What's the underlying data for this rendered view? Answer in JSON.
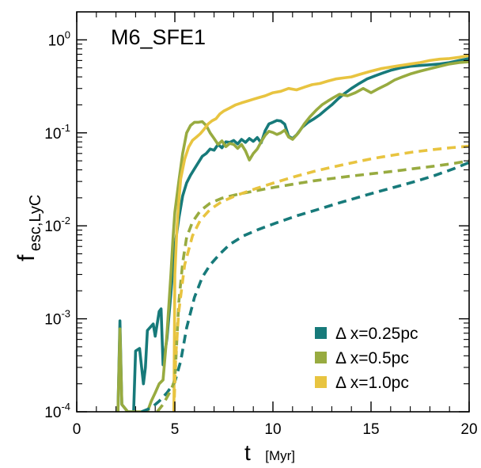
{
  "chart_data": {
    "type": "line",
    "title": "M6_SFE1",
    "xlabel": "t",
    "xlabel_unit": "[Myr]",
    "ylabel_main": "f",
    "ylabel_sub": "esc,LyC",
    "xlim": [
      0,
      20
    ],
    "ylim": [
      0.0001,
      2.0
    ],
    "yscale": "log",
    "grid": false,
    "legend_position": "bottom-right",
    "x_ticks": [
      {
        "value": 0,
        "label": "0"
      },
      {
        "value": 5,
        "label": "5"
      },
      {
        "value": 10,
        "label": "10"
      },
      {
        "value": 15,
        "label": "15"
      },
      {
        "value": 20,
        "label": "20"
      }
    ],
    "y_ticks": [
      {
        "value": 1.0,
        "base": "10",
        "exp": "0"
      },
      {
        "value": 0.1,
        "base": "10",
        "exp": "-1"
      },
      {
        "value": 0.01,
        "base": "10",
        "exp": "-2"
      },
      {
        "value": 0.001,
        "base": "10",
        "exp": "-3"
      },
      {
        "value": 0.0001,
        "base": "10",
        "exp": "-4"
      }
    ],
    "series": [
      {
        "name": "Δ x=0.25pc",
        "color": "#177a7a",
        "style": "solid",
        "points": [
          [
            2.1,
            0.0001
          ],
          [
            2.2,
            0.00095
          ],
          [
            2.3,
            0.00012
          ],
          [
            2.6,
            0.0001
          ],
          [
            2.9,
            0.0001
          ],
          [
            3.0,
            0.00045
          ],
          [
            3.2,
            0.00048
          ],
          [
            3.4,
            0.0002
          ],
          [
            3.5,
            0.0003
          ],
          [
            3.6,
            0.00075
          ],
          [
            3.9,
            0.00088
          ],
          [
            4.0,
            0.00065
          ],
          [
            4.2,
            0.0012
          ],
          [
            4.3,
            0.00128
          ],
          [
            4.4,
            0.00032
          ],
          [
            4.6,
            0.00062
          ],
          [
            4.8,
            0.00185
          ],
          [
            4.9,
            0.0035
          ],
          [
            5.0,
            0.006
          ],
          [
            5.2,
            0.012
          ],
          [
            5.4,
            0.021
          ],
          [
            5.6,
            0.029
          ],
          [
            5.8,
            0.035
          ],
          [
            6.0,
            0.041
          ],
          [
            6.2,
            0.048
          ],
          [
            6.4,
            0.056
          ],
          [
            6.6,
            0.06
          ],
          [
            6.8,
            0.067
          ],
          [
            7.0,
            0.065
          ],
          [
            7.2,
            0.075
          ],
          [
            7.4,
            0.069
          ],
          [
            7.6,
            0.08
          ],
          [
            7.8,
            0.079
          ],
          [
            8.0,
            0.083
          ],
          [
            8.2,
            0.076
          ],
          [
            8.4,
            0.085
          ],
          [
            8.6,
            0.079
          ],
          [
            8.8,
            0.087
          ],
          [
            9.0,
            0.081
          ],
          [
            9.2,
            0.089
          ],
          [
            9.4,
            0.078
          ],
          [
            9.6,
            0.105
          ],
          [
            9.8,
            0.125
          ],
          [
            10.0,
            0.13
          ],
          [
            10.2,
            0.136
          ],
          [
            10.4,
            0.134
          ],
          [
            10.6,
            0.124
          ],
          [
            10.8,
            0.092
          ],
          [
            11.0,
            0.087
          ],
          [
            11.2,
            0.095
          ],
          [
            11.5,
            0.115
          ],
          [
            11.8,
            0.13
          ],
          [
            12.1,
            0.142
          ],
          [
            12.4,
            0.157
          ],
          [
            12.7,
            0.178
          ],
          [
            13.0,
            0.2
          ],
          [
            13.3,
            0.23
          ],
          [
            13.6,
            0.26
          ],
          [
            14.0,
            0.3
          ],
          [
            14.4,
            0.34
          ],
          [
            14.8,
            0.38
          ],
          [
            15.2,
            0.41
          ],
          [
            15.6,
            0.44
          ],
          [
            16.0,
            0.47
          ],
          [
            16.5,
            0.5
          ],
          [
            17.0,
            0.52
          ],
          [
            17.5,
            0.53
          ],
          [
            18.0,
            0.54
          ],
          [
            18.5,
            0.55
          ],
          [
            19.0,
            0.57
          ],
          [
            19.5,
            0.6
          ],
          [
            20.0,
            0.63
          ]
        ]
      },
      {
        "name": "Δ x=0.5pc",
        "color": "#98ab40",
        "style": "solid",
        "points": [
          [
            2.1,
            0.0001
          ],
          [
            2.2,
            0.00078
          ],
          [
            2.3,
            0.00012
          ],
          [
            2.6,
            0.0001
          ],
          [
            3.6,
            0.0001
          ],
          [
            3.8,
            0.00013
          ],
          [
            4.0,
            0.00016
          ],
          [
            4.2,
            0.0002
          ],
          [
            4.4,
            0.00022
          ],
          [
            4.6,
            0.0007
          ],
          [
            4.8,
            0.003
          ],
          [
            4.9,
            0.007
          ],
          [
            5.0,
            0.014
          ],
          [
            5.2,
            0.03
          ],
          [
            5.4,
            0.06
          ],
          [
            5.6,
            0.1
          ],
          [
            5.8,
            0.12
          ],
          [
            6.0,
            0.13
          ],
          [
            6.2,
            0.13
          ],
          [
            6.4,
            0.132
          ],
          [
            6.6,
            0.12
          ],
          [
            6.8,
            0.1
          ],
          [
            7.0,
            0.087
          ],
          [
            7.2,
            0.075
          ],
          [
            7.4,
            0.082
          ],
          [
            7.6,
            0.071
          ],
          [
            7.8,
            0.077
          ],
          [
            8.0,
            0.075
          ],
          [
            8.2,
            0.068
          ],
          [
            8.4,
            0.075
          ],
          [
            8.6,
            0.064
          ],
          [
            8.8,
            0.051
          ],
          [
            9.0,
            0.06
          ],
          [
            9.2,
            0.067
          ],
          [
            9.4,
            0.08
          ],
          [
            9.6,
            0.094
          ],
          [
            9.8,
            0.104
          ],
          [
            10.0,
            0.101
          ],
          [
            10.2,
            0.096
          ],
          [
            10.4,
            0.1
          ],
          [
            10.6,
            0.107
          ],
          [
            10.8,
            0.09
          ],
          [
            11.0,
            0.085
          ],
          [
            11.3,
            0.1
          ],
          [
            11.6,
            0.125
          ],
          [
            11.9,
            0.15
          ],
          [
            12.2,
            0.175
          ],
          [
            12.5,
            0.2
          ],
          [
            12.8,
            0.22
          ],
          [
            13.1,
            0.24
          ],
          [
            13.4,
            0.26
          ],
          [
            13.8,
            0.25
          ],
          [
            14.2,
            0.27
          ],
          [
            14.6,
            0.3
          ],
          [
            15.0,
            0.27
          ],
          [
            15.4,
            0.3
          ],
          [
            15.8,
            0.33
          ],
          [
            16.2,
            0.37
          ],
          [
            16.6,
            0.4
          ],
          [
            17.0,
            0.43
          ],
          [
            17.5,
            0.46
          ],
          [
            18.0,
            0.49
          ],
          [
            18.5,
            0.52
          ],
          [
            19.0,
            0.55
          ],
          [
            19.5,
            0.57
          ],
          [
            20.0,
            0.58
          ]
        ]
      },
      {
        "name": "Δ x=1.0pc",
        "color": "#e8c440",
        "style": "solid",
        "points": [
          [
            4.95,
            0.0001
          ],
          [
            5.0,
            0.003
          ],
          [
            5.1,
            0.009
          ],
          [
            5.2,
            0.018
          ],
          [
            5.3,
            0.032
          ],
          [
            5.5,
            0.052
          ],
          [
            5.7,
            0.07
          ],
          [
            5.9,
            0.083
          ],
          [
            6.1,
            0.09
          ],
          [
            6.3,
            0.098
          ],
          [
            6.5,
            0.11
          ],
          [
            6.7,
            0.125
          ],
          [
            6.9,
            0.135
          ],
          [
            7.1,
            0.142
          ],
          [
            7.3,
            0.16
          ],
          [
            7.5,
            0.172
          ],
          [
            7.8,
            0.185
          ],
          [
            8.1,
            0.2
          ],
          [
            8.4,
            0.21
          ],
          [
            8.7,
            0.22
          ],
          [
            9.0,
            0.23
          ],
          [
            9.3,
            0.24
          ],
          [
            9.6,
            0.25
          ],
          [
            10.0,
            0.27
          ],
          [
            10.4,
            0.28
          ],
          [
            10.8,
            0.3
          ],
          [
            11.2,
            0.29
          ],
          [
            11.6,
            0.31
          ],
          [
            12.0,
            0.33
          ],
          [
            12.4,
            0.34
          ],
          [
            12.8,
            0.36
          ],
          [
            13.2,
            0.38
          ],
          [
            13.6,
            0.39
          ],
          [
            14.0,
            0.4
          ],
          [
            14.5,
            0.43
          ],
          [
            15.0,
            0.46
          ],
          [
            15.5,
            0.49
          ],
          [
            16.0,
            0.51
          ],
          [
            16.5,
            0.53
          ],
          [
            17.0,
            0.55
          ],
          [
            17.5,
            0.57
          ],
          [
            18.0,
            0.6
          ],
          [
            18.5,
            0.62
          ],
          [
            19.0,
            0.63
          ],
          [
            19.5,
            0.65
          ],
          [
            20.0,
            0.68
          ]
        ]
      },
      {
        "color": "#177a7a",
        "style": "dashed",
        "points": [
          [
            3.3,
            0.0001
          ],
          [
            3.8,
            0.00011
          ],
          [
            4.2,
            0.00013
          ],
          [
            4.6,
            0.00016
          ],
          [
            5.0,
            0.00021
          ],
          [
            5.3,
            0.00035
          ],
          [
            5.6,
            0.0008
          ],
          [
            6.0,
            0.0017
          ],
          [
            6.4,
            0.0028
          ],
          [
            6.8,
            0.0038
          ],
          [
            7.3,
            0.005
          ],
          [
            7.8,
            0.0063
          ],
          [
            8.5,
            0.0078
          ],
          [
            9.3,
            0.0092
          ],
          [
            10.2,
            0.0108
          ],
          [
            11.2,
            0.0128
          ],
          [
            12.2,
            0.0148
          ],
          [
            13.2,
            0.0172
          ],
          [
            14.2,
            0.0198
          ],
          [
            15.2,
            0.0228
          ],
          [
            16.2,
            0.026
          ],
          [
            17.2,
            0.0298
          ],
          [
            18.2,
            0.0345
          ],
          [
            19.2,
            0.041
          ],
          [
            20.0,
            0.048
          ]
        ]
      },
      {
        "color": "#98ab40",
        "style": "dashed",
        "points": [
          [
            4.1,
            0.0001
          ],
          [
            4.4,
            0.00012
          ],
          [
            4.8,
            0.00017
          ],
          [
            5.0,
            0.00022
          ],
          [
            5.2,
            0.0015
          ],
          [
            5.4,
            0.004
          ],
          [
            5.6,
            0.0075
          ],
          [
            5.9,
            0.011
          ],
          [
            6.3,
            0.0145
          ],
          [
            6.8,
            0.0175
          ],
          [
            7.4,
            0.0198
          ],
          [
            8.2,
            0.0218
          ],
          [
            9.1,
            0.0238
          ],
          [
            10.1,
            0.026
          ],
          [
            11.1,
            0.0282
          ],
          [
            12.1,
            0.0305
          ],
          [
            13.1,
            0.0325
          ],
          [
            14.1,
            0.0345
          ],
          [
            15.1,
            0.0365
          ],
          [
            16.1,
            0.0385
          ],
          [
            17.1,
            0.041
          ],
          [
            18.1,
            0.0435
          ],
          [
            19.1,
            0.0465
          ],
          [
            20.0,
            0.05
          ]
        ]
      },
      {
        "color": "#e8c440",
        "style": "dashed",
        "points": [
          [
            4.95,
            0.0001
          ],
          [
            5.05,
            0.0004
          ],
          [
            5.2,
            0.0012
          ],
          [
            5.5,
            0.0038
          ],
          [
            5.9,
            0.0078
          ],
          [
            6.3,
            0.0115
          ],
          [
            6.8,
            0.015
          ],
          [
            7.4,
            0.0182
          ],
          [
            8.2,
            0.0215
          ],
          [
            9.1,
            0.025
          ],
          [
            10.1,
            0.0292
          ],
          [
            11.1,
            0.0338
          ],
          [
            12.1,
            0.0385
          ],
          [
            13.1,
            0.0432
          ],
          [
            14.1,
            0.048
          ],
          [
            15.1,
            0.053
          ],
          [
            16.1,
            0.0575
          ],
          [
            17.1,
            0.062
          ],
          [
            18.1,
            0.0658
          ],
          [
            19.1,
            0.0692
          ],
          [
            20.0,
            0.072
          ]
        ]
      }
    ]
  }
}
